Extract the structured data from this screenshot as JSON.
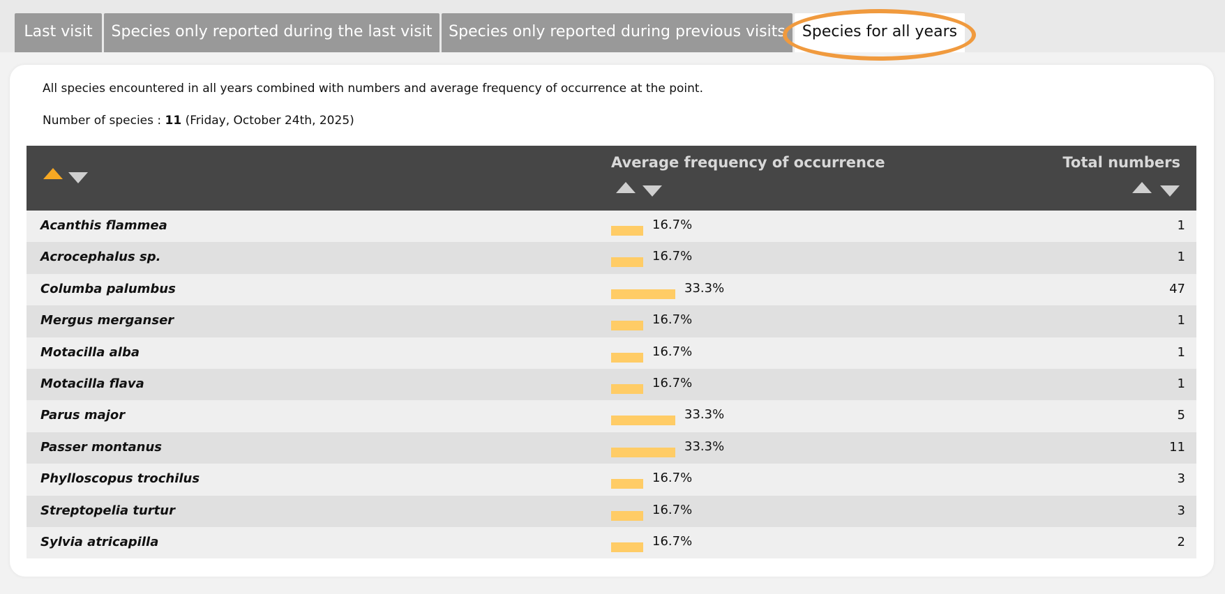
{
  "tabs": [
    {
      "label": "Last visit",
      "active": false
    },
    {
      "label": "Species only reported during the last visit",
      "active": false
    },
    {
      "label": "Species only reported during previous visits",
      "active": false
    },
    {
      "label": "Species for all years",
      "active": true
    }
  ],
  "description": "All species encountered in all years combined with numbers and average frequency of occurrence at the point.",
  "summary": {
    "prefix": "Number of species : ",
    "count": "11",
    "date": " (Friday, October 24th, 2025)"
  },
  "table": {
    "columns": [
      {
        "key": "species",
        "label": "",
        "sort": "ascending"
      },
      {
        "key": "frequency",
        "label": "Average frequency of occurrence",
        "sort": "none"
      },
      {
        "key": "total",
        "label": "Total numbers",
        "sort": "none"
      }
    ],
    "rows": [
      {
        "species": "Acanthis flammea",
        "frequency": "16.7%",
        "frequency_value": 16.7,
        "total": "1"
      },
      {
        "species": "Acrocephalus sp.",
        "frequency": "16.7%",
        "frequency_value": 16.7,
        "total": "1"
      },
      {
        "species": "Columba palumbus",
        "frequency": "33.3%",
        "frequency_value": 33.3,
        "total": "47"
      },
      {
        "species": "Mergus merganser",
        "frequency": "16.7%",
        "frequency_value": 16.7,
        "total": "1"
      },
      {
        "species": "Motacilla alba",
        "frequency": "16.7%",
        "frequency_value": 16.7,
        "total": "1"
      },
      {
        "species": "Motacilla flava",
        "frequency": "16.7%",
        "frequency_value": 16.7,
        "total": "1"
      },
      {
        "species": "Parus major",
        "frequency": "33.3%",
        "frequency_value": 33.3,
        "total": "5"
      },
      {
        "species": "Passer montanus",
        "frequency": "33.3%",
        "frequency_value": 33.3,
        "total": "11"
      },
      {
        "species": "Phylloscopus trochilus",
        "frequency": "16.7%",
        "frequency_value": 16.7,
        "total": "3"
      },
      {
        "species": "Streptopelia turtur",
        "frequency": "16.7%",
        "frequency_value": 16.7,
        "total": "3"
      },
      {
        "species": "Sylvia atricapilla",
        "frequency": "16.7%",
        "frequency_value": 16.7,
        "total": "2"
      }
    ]
  },
  "colors": {
    "tab_inactive": "#999999",
    "tab_active": "#ffffff",
    "header_bg": "#464646",
    "sort_active": "#f7a823",
    "bar": "#ffcc66",
    "highlight_ring": "#f09a3e"
  },
  "icons": {
    "sort_ascending": "triangle-up-icon",
    "sort_descending": "triangle-down-icon"
  }
}
